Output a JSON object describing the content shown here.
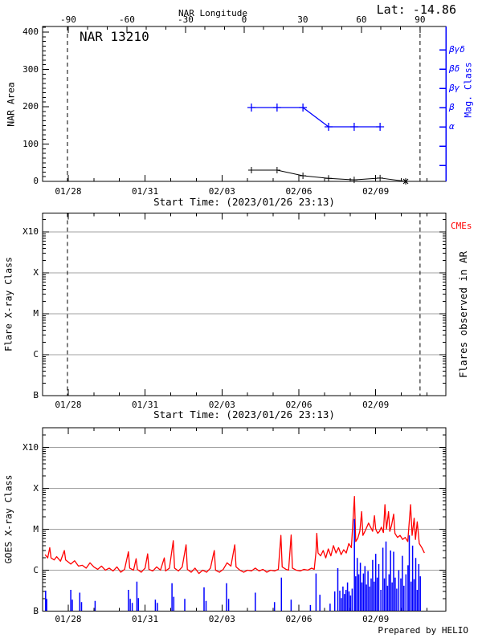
{
  "page": {
    "credit": "Prepared by HELIO"
  },
  "colors": {
    "blue": "#0000ff",
    "red": "#ff0000",
    "grid": "#a0a0a0",
    "fg": "#000000",
    "bg": "#ffffff"
  },
  "chart_data": [
    {
      "id": "nar-area-panel",
      "type": "line",
      "title": "NAR 13210",
      "annotation_lat": "Lat: -14.86",
      "ylabel": "NAR Area",
      "ylim": [
        0,
        400
      ],
      "yticks": [
        "400",
        "300",
        "200",
        "100",
        "0"
      ],
      "ytick_values": [
        400,
        300,
        200,
        100,
        0
      ],
      "top_axis": {
        "title": "NAR Longitude",
        "ticks": [
          "-90",
          "-60",
          "-30",
          "0",
          "30",
          "60",
          "90"
        ],
        "tick_values": [
          -90,
          -60,
          -30,
          0,
          30,
          60,
          90
        ]
      },
      "right_axis": {
        "title": "Mag. Class",
        "tick_labels": [
          "βγδ",
          "βδ",
          "βγ",
          "β",
          "α",
          "",
          ""
        ]
      },
      "xlabel": "Start Time: (2023/01/26 23:13)",
      "xtick_labels": [
        "01/28",
        "01/31",
        "02/03",
        "02/06",
        "02/09"
      ],
      "xtick_days": [
        1,
        4,
        7,
        10,
        13
      ],
      "limb_line_days": [
        0.97,
        14.73
      ],
      "series": [
        {
          "name": "NAR area",
          "color": "#000000",
          "marker": "+",
          "end_marker": "*",
          "dates": [
            "02/04",
            "02/05",
            "02/06",
            "02/07",
            "02/08",
            "02/09",
            "02/10"
          ],
          "t": [
            8.15,
            9.15,
            10.16,
            11.16,
            12.16,
            13.17,
            14.17
          ],
          "values": [
            30,
            30,
            15,
            8,
            4,
            9,
            0
          ]
        },
        {
          "name": "Magnetic class",
          "color": "#0000ff",
          "marker": "+",
          "dates": [
            "02/04",
            "02/05",
            "02/06",
            "02/07",
            "02/08",
            "02/09"
          ],
          "t": [
            8.15,
            9.15,
            10.16,
            11.16,
            12.16,
            13.17
          ],
          "values": [
            "β",
            "β",
            "β",
            "α",
            "α",
            "α"
          ]
        }
      ]
    },
    {
      "id": "flare-panel",
      "type": "line",
      "ylabel": "Flare X-ray Class",
      "yticks": [
        "X10",
        "X",
        "M",
        "C",
        "B"
      ],
      "right_label": "Flares observed in AR",
      "annotation": "CMEs",
      "xlabel": "Start Time: (2023/01/26 23:13)",
      "xtick_labels": [
        "01/28",
        "01/31",
        "02/03",
        "02/06",
        "02/09"
      ],
      "xtick_days": [
        1,
        4,
        7,
        10,
        13
      ],
      "limb_line_days": [
        0.97,
        14.73
      ],
      "series": []
    },
    {
      "id": "goes-panel",
      "type": "line",
      "ylabel": "GOES X-ray Class",
      "yticks": [
        "X10",
        "X",
        "M",
        "C",
        "B"
      ],
      "class_scale": {
        "B": 0,
        "C": 1,
        "M": 2,
        "X": 3,
        "X10": 4
      },
      "xtick_labels": [
        "01/28",
        "01/31",
        "02/03",
        "02/06",
        "02/09"
      ],
      "xtick_days": [
        1,
        4,
        7,
        10,
        13
      ],
      "series": [
        {
          "name": "GOES X-ray flux",
          "color": "#ff0000",
          "type": "line",
          "points": [
            [
              0.1,
              1.38
            ],
            [
              0.2,
              1.3
            ],
            [
              0.28,
              1.55
            ],
            [
              0.33,
              1.3
            ],
            [
              0.45,
              1.25
            ],
            [
              0.55,
              1.33
            ],
            [
              0.7,
              1.22
            ],
            [
              0.85,
              1.48
            ],
            [
              0.9,
              1.25
            ],
            [
              1.0,
              1.2
            ],
            [
              1.1,
              1.15
            ],
            [
              1.25,
              1.23
            ],
            [
              1.4,
              1.1
            ],
            [
              1.55,
              1.12
            ],
            [
              1.7,
              1.05
            ],
            [
              1.85,
              1.18
            ],
            [
              2.0,
              1.08
            ],
            [
              2.15,
              1.02
            ],
            [
              2.3,
              1.1
            ],
            [
              2.45,
              1.0
            ],
            [
              2.6,
              1.05
            ],
            [
              2.75,
              0.98
            ],
            [
              2.9,
              1.08
            ],
            [
              3.05,
              0.95
            ],
            [
              3.2,
              1.02
            ],
            [
              3.35,
              1.45
            ],
            [
              3.4,
              1.05
            ],
            [
              3.55,
              1.0
            ],
            [
              3.65,
              1.28
            ],
            [
              3.7,
              1.02
            ],
            [
              3.85,
              0.95
            ],
            [
              4.0,
              1.05
            ],
            [
              4.1,
              1.4
            ],
            [
              4.15,
              1.02
            ],
            [
              4.3,
              0.98
            ],
            [
              4.45,
              1.08
            ],
            [
              4.6,
              1.0
            ],
            [
              4.75,
              1.3
            ],
            [
              4.8,
              0.98
            ],
            [
              4.95,
              1.05
            ],
            [
              5.1,
              1.72
            ],
            [
              5.15,
              1.05
            ],
            [
              5.3,
              0.98
            ],
            [
              5.45,
              1.08
            ],
            [
              5.6,
              1.62
            ],
            [
              5.65,
              1.02
            ],
            [
              5.8,
              0.95
            ],
            [
              5.95,
              1.05
            ],
            [
              6.1,
              0.92
            ],
            [
              6.25,
              1.0
            ],
            [
              6.4,
              0.95
            ],
            [
              6.55,
              1.05
            ],
            [
              6.7,
              1.48
            ],
            [
              6.75,
              1.0
            ],
            [
              6.9,
              0.95
            ],
            [
              7.05,
              1.02
            ],
            [
              7.2,
              1.18
            ],
            [
              7.35,
              1.1
            ],
            [
              7.5,
              1.62
            ],
            [
              7.55,
              1.08
            ],
            [
              7.7,
              1.0
            ],
            [
              7.85,
              0.95
            ],
            [
              8.0,
              1.0
            ],
            [
              8.15,
              0.98
            ],
            [
              8.3,
              1.05
            ],
            [
              8.45,
              0.98
            ],
            [
              8.6,
              1.02
            ],
            [
              8.75,
              0.95
            ],
            [
              8.9,
              1.0
            ],
            [
              9.05,
              0.98
            ],
            [
              9.2,
              1.02
            ],
            [
              9.3,
              1.85
            ],
            [
              9.35,
              1.08
            ],
            [
              9.5,
              1.02
            ],
            [
              9.6,
              1.0
            ],
            [
              9.7,
              1.86
            ],
            [
              9.75,
              1.05
            ],
            [
              9.9,
              1.0
            ],
            [
              10.05,
              0.98
            ],
            [
              10.2,
              1.02
            ],
            [
              10.35,
              1.0
            ],
            [
              10.5,
              1.05
            ],
            [
              10.6,
              1.02
            ],
            [
              10.67,
              1.45
            ],
            [
              10.7,
              1.9
            ],
            [
              10.75,
              1.42
            ],
            [
              10.85,
              1.35
            ],
            [
              10.95,
              1.48
            ],
            [
              11.05,
              1.3
            ],
            [
              11.15,
              1.52
            ],
            [
              11.25,
              1.35
            ],
            [
              11.35,
              1.6
            ],
            [
              11.45,
              1.42
            ],
            [
              11.55,
              1.55
            ],
            [
              11.65,
              1.38
            ],
            [
              11.75,
              1.5
            ],
            [
              11.85,
              1.42
            ],
            [
              11.95,
              1.65
            ],
            [
              12.05,
              1.55
            ],
            [
              12.17,
              2.8
            ],
            [
              12.22,
              1.7
            ],
            [
              12.3,
              1.78
            ],
            [
              12.38,
              1.95
            ],
            [
              12.45,
              2.43
            ],
            [
              12.5,
              1.85
            ],
            [
              12.58,
              1.95
            ],
            [
              12.65,
              2.05
            ],
            [
              12.72,
              2.15
            ],
            [
              12.8,
              2.05
            ],
            [
              12.88,
              1.95
            ],
            [
              12.95,
              2.33
            ],
            [
              13.0,
              2.0
            ],
            [
              13.08,
              1.9
            ],
            [
              13.15,
              1.95
            ],
            [
              13.22,
              2.05
            ],
            [
              13.3,
              1.92
            ],
            [
              13.36,
              2.6
            ],
            [
              13.42,
              2.0
            ],
            [
              13.5,
              2.43
            ],
            [
              13.55,
              1.95
            ],
            [
              13.62,
              2.1
            ],
            [
              13.7,
              2.37
            ],
            [
              13.75,
              1.9
            ],
            [
              13.85,
              1.8
            ],
            [
              13.95,
              1.85
            ],
            [
              14.05,
              1.75
            ],
            [
              14.15,
              1.8
            ],
            [
              14.25,
              1.7
            ],
            [
              14.36,
              2.6
            ],
            [
              14.42,
              1.85
            ],
            [
              14.5,
              2.27
            ],
            [
              14.55,
              1.75
            ],
            [
              14.62,
              2.18
            ],
            [
              14.7,
              1.65
            ],
            [
              14.8,
              1.55
            ],
            [
              14.9,
              1.42
            ]
          ]
        },
        {
          "name": "Event bars",
          "color": "#0000ff",
          "type": "bar",
          "points": [
            [
              0.12,
              0.5
            ],
            [
              0.16,
              0.3
            ],
            [
              1.1,
              0.52
            ],
            [
              1.16,
              0.28
            ],
            [
              1.45,
              0.45
            ],
            [
              1.52,
              0.22
            ],
            [
              2.05,
              0.25
            ],
            [
              3.35,
              0.52
            ],
            [
              3.42,
              0.3
            ],
            [
              3.5,
              0.2
            ],
            [
              3.68,
              0.72
            ],
            [
              3.74,
              0.32
            ],
            [
              4.4,
              0.28
            ],
            [
              4.48,
              0.2
            ],
            [
              5.05,
              0.68
            ],
            [
              5.12,
              0.35
            ],
            [
              5.55,
              0.3
            ],
            [
              6.3,
              0.58
            ],
            [
              6.38,
              0.25
            ],
            [
              7.18,
              0.68
            ],
            [
              7.26,
              0.3
            ],
            [
              8.3,
              0.45
            ],
            [
              9.05,
              0.22
            ],
            [
              9.32,
              0.82
            ],
            [
              9.7,
              0.28
            ],
            [
              10.45,
              0.15
            ],
            [
              10.67,
              0.92
            ],
            [
              10.82,
              0.4
            ],
            [
              11.22,
              0.18
            ],
            [
              11.4,
              0.48
            ],
            [
              11.52,
              1.05
            ],
            [
              11.6,
              0.5
            ],
            [
              11.66,
              0.32
            ],
            [
              11.72,
              0.6
            ],
            [
              11.78,
              0.42
            ],
            [
              11.84,
              0.52
            ],
            [
              11.9,
              0.7
            ],
            [
              11.96,
              0.48
            ],
            [
              12.02,
              0.38
            ],
            [
              12.08,
              0.55
            ],
            [
              12.17,
              2.25
            ],
            [
              12.22,
              0.85
            ],
            [
              12.28,
              1.3
            ],
            [
              12.34,
              0.9
            ],
            [
              12.4,
              1.18
            ],
            [
              12.46,
              0.7
            ],
            [
              12.52,
              0.92
            ],
            [
              12.58,
              1.1
            ],
            [
              12.64,
              0.65
            ],
            [
              12.7,
              0.98
            ],
            [
              12.76,
              0.6
            ],
            [
              12.82,
              0.8
            ],
            [
              12.88,
              1.25
            ],
            [
              12.94,
              0.72
            ],
            [
              13.0,
              1.4
            ],
            [
              13.06,
              0.82
            ],
            [
              13.12,
              1.15
            ],
            [
              13.2,
              0.52
            ],
            [
              13.28,
              1.55
            ],
            [
              13.34,
              0.8
            ],
            [
              13.4,
              1.7
            ],
            [
              13.46,
              0.62
            ],
            [
              13.52,
              0.9
            ],
            [
              13.58,
              1.48
            ],
            [
              13.64,
              0.7
            ],
            [
              13.7,
              1.45
            ],
            [
              13.76,
              0.82
            ],
            [
              13.82,
              0.55
            ],
            [
              13.9,
              1.0
            ],
            [
              13.98,
              0.8
            ],
            [
              14.04,
              1.35
            ],
            [
              14.1,
              0.62
            ],
            [
              14.18,
              0.9
            ],
            [
              14.26,
              1.12
            ],
            [
              14.31,
              1.85
            ],
            [
              14.38,
              0.72
            ],
            [
              14.44,
              1.6
            ],
            [
              14.5,
              0.78
            ],
            [
              14.56,
              1.3
            ],
            [
              14.62,
              0.52
            ],
            [
              14.68,
              1.15
            ],
            [
              14.74,
              0.85
            ]
          ]
        }
      ]
    }
  ]
}
